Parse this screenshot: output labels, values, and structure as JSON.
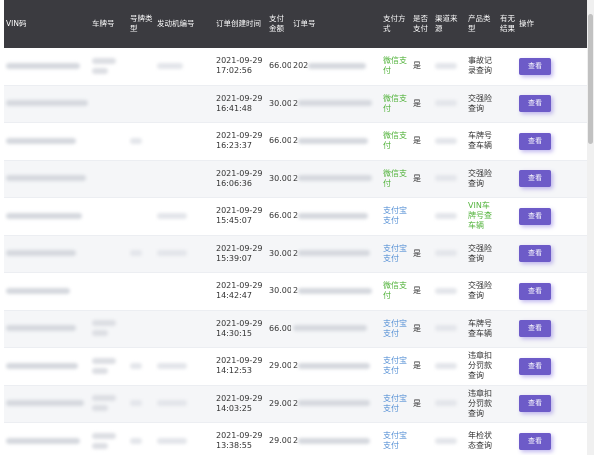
{
  "columns": [
    "VIN码",
    "车牌号",
    "号牌类型",
    "发动机编号",
    "订单创建时间",
    "支付金额",
    "订单号",
    "支付方式",
    "是否支付",
    "渠道来源",
    "产品类型",
    "有无结果",
    "操作"
  ],
  "view_label": "查看",
  "colors": {
    "header_bg": "#3b3b40",
    "wechat_green": "#52b33b",
    "alipay_blue": "#5a93d6",
    "button_purple": "#6d5bc8"
  },
  "rows": [
    {
      "date": "2021-09-29",
      "time": "17:02:56",
      "amount": "66.00",
      "order_prefix": "202",
      "pay": "微信支付",
      "pay_type": "wechat",
      "paid": "是",
      "product": "事故记录查询"
    },
    {
      "date": "2021-09-29",
      "time": "16:41:48",
      "amount": "30.00",
      "order_prefix": "2",
      "pay": "微信支付",
      "pay_type": "wechat",
      "paid": "是",
      "product": "交强险查询"
    },
    {
      "date": "2021-09-29",
      "time": "16:23:37",
      "amount": "66.00",
      "order_prefix": "2",
      "pay": "微信支付",
      "pay_type": "wechat",
      "paid": "是",
      "product": "车牌号查车辆"
    },
    {
      "date": "2021-09-29",
      "time": "16:06:36",
      "amount": "30.00",
      "order_prefix": "2",
      "pay": "微信支付",
      "pay_type": "wechat",
      "paid": "是",
      "product": "交强险查询"
    },
    {
      "date": "2021-09-29",
      "time": "15:45:07",
      "amount": "66.00",
      "order_prefix": "2",
      "pay": "支付宝支付",
      "pay_type": "alipay",
      "paid": "",
      "product": "VIN车牌号查车辆"
    },
    {
      "date": "2021-09-29",
      "time": "15:39:07",
      "amount": "30.00",
      "order_prefix": "2",
      "pay": "支付宝支付",
      "pay_type": "alipay",
      "paid": "是",
      "product": "交强险查询"
    },
    {
      "date": "2021-09-29",
      "time": "14:42:47",
      "amount": "30.00",
      "order_prefix": "2",
      "pay": "微信支付",
      "pay_type": "wechat",
      "paid": "是",
      "product": "交强险查询"
    },
    {
      "date": "2021-09-29",
      "time": "14:30:15",
      "amount": "66.00",
      "order_prefix": "",
      "pay": "支付宝支付",
      "pay_type": "alipay",
      "paid": "是",
      "product": "车牌号查车辆"
    },
    {
      "date": "2021-09-29",
      "time": "14:12:53",
      "amount": "29.00",
      "order_prefix": "2",
      "pay": "支付宝支付",
      "pay_type": "alipay",
      "paid": "是",
      "product": "违章扣分罚款查询"
    },
    {
      "date": "2021-09-29",
      "time": "14:03:25",
      "amount": "29.00",
      "order_prefix": "2",
      "pay": "支付宝支付",
      "pay_type": "alipay",
      "paid": "是",
      "product": "违章扣分罚款查询"
    },
    {
      "date": "2021-09-29",
      "time": "13:38:55",
      "amount": "29.00",
      "order_prefix": "2",
      "pay": "支付宝支付",
      "pay_type": "alipay",
      "paid": "",
      "product": "年检状态查询"
    }
  ]
}
